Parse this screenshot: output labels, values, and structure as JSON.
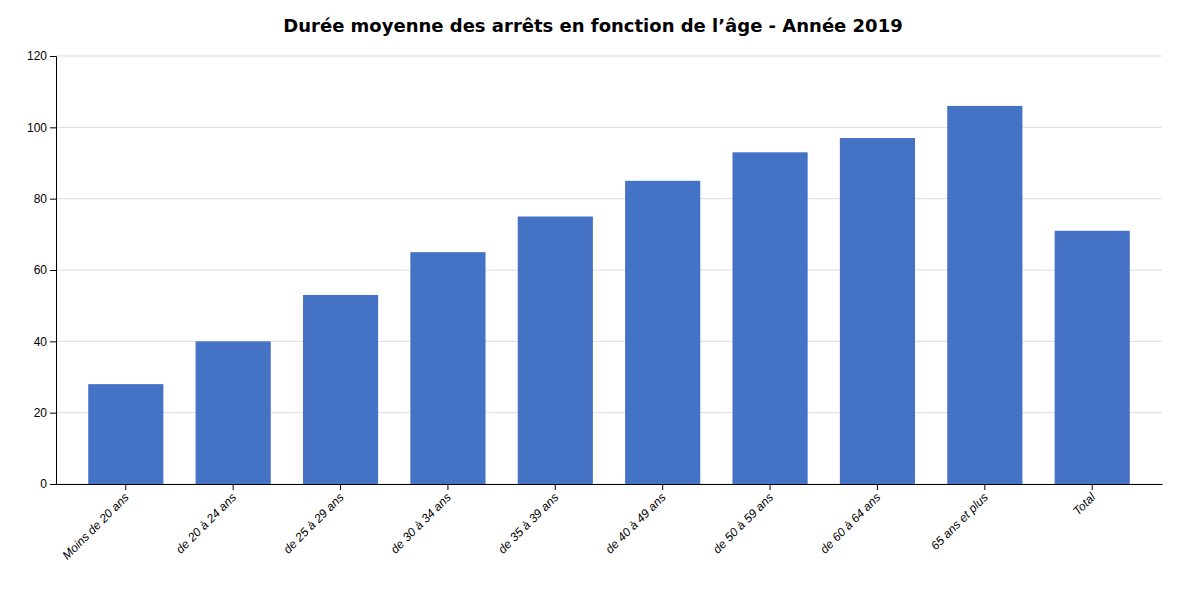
{
  "chart_data": {
    "type": "bar",
    "title": "Durée moyenne des arrêts en fonction de l’âge - Année 2019",
    "categories": [
      "Moins de 20 ans",
      "de 20 à 24 ans",
      "de 25 à 29 ans",
      "de 30 à 34 ans",
      "de 35 à 39 ans",
      "de 40 à 49 ans",
      "de 50 à 59 ans",
      "de 60 à 64 ans",
      "65 ans et plus",
      "Total"
    ],
    "values": [
      28,
      40,
      53,
      65,
      75,
      85,
      93,
      97,
      106,
      71
    ],
    "color": "#4472C4",
    "ylim": [
      0,
      120
    ],
    "yticks": [
      0,
      20,
      40,
      60,
      80,
      100,
      120
    ],
    "grid": true
  }
}
